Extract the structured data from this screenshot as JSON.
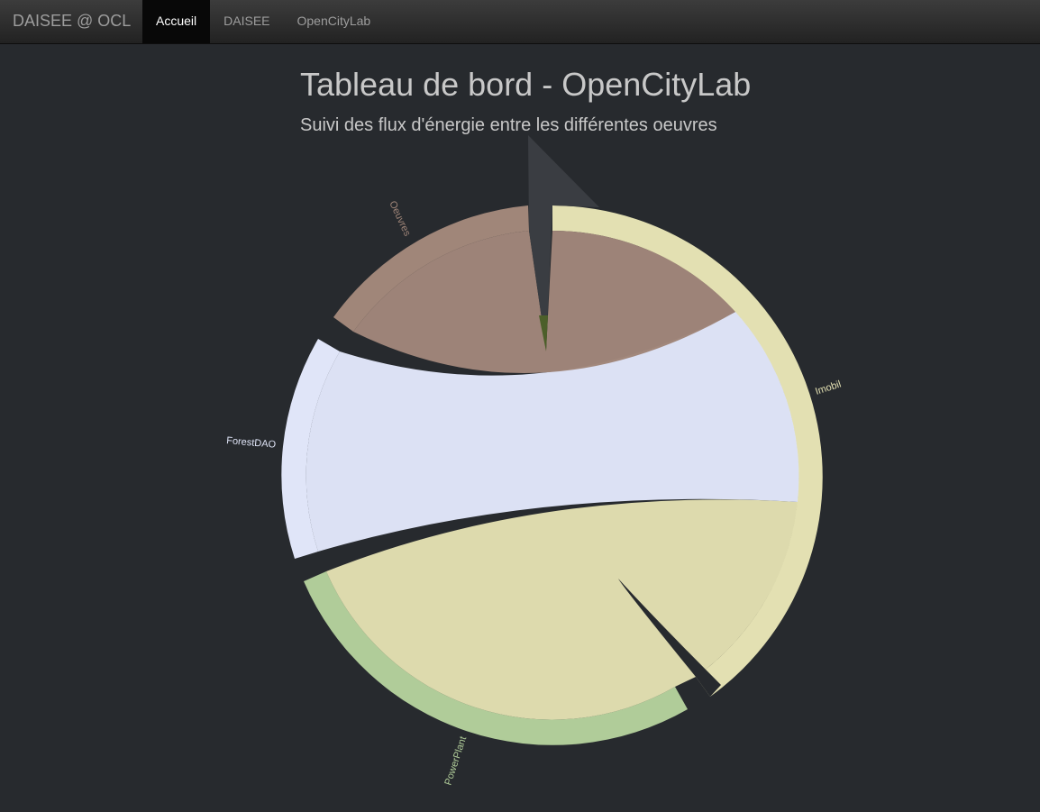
{
  "navbar": {
    "brand": "DAISEE @ OCL",
    "items": [
      {
        "label": "Accueil",
        "active": true
      },
      {
        "label": "DAISEE",
        "active": false
      },
      {
        "label": "OpenCityLab",
        "active": false
      }
    ]
  },
  "header": {
    "title": "Tableau de bord - OpenCityLab",
    "subtitle": "Suivi des flux d'énergie entre les différentes oeuvres"
  },
  "chart_data": {
    "type": "chord",
    "title": "",
    "groups": [
      {
        "name": "Oeuvres",
        "color": "#a08679"
      },
      {
        "name": "Imobil",
        "color": "#e3e0b2"
      },
      {
        "name": "PowerPlant",
        "color": "#b0cc99"
      },
      {
        "name": "ForestDAO",
        "color": "#e0e5f8"
      }
    ],
    "background_color": "#272a2e"
  }
}
